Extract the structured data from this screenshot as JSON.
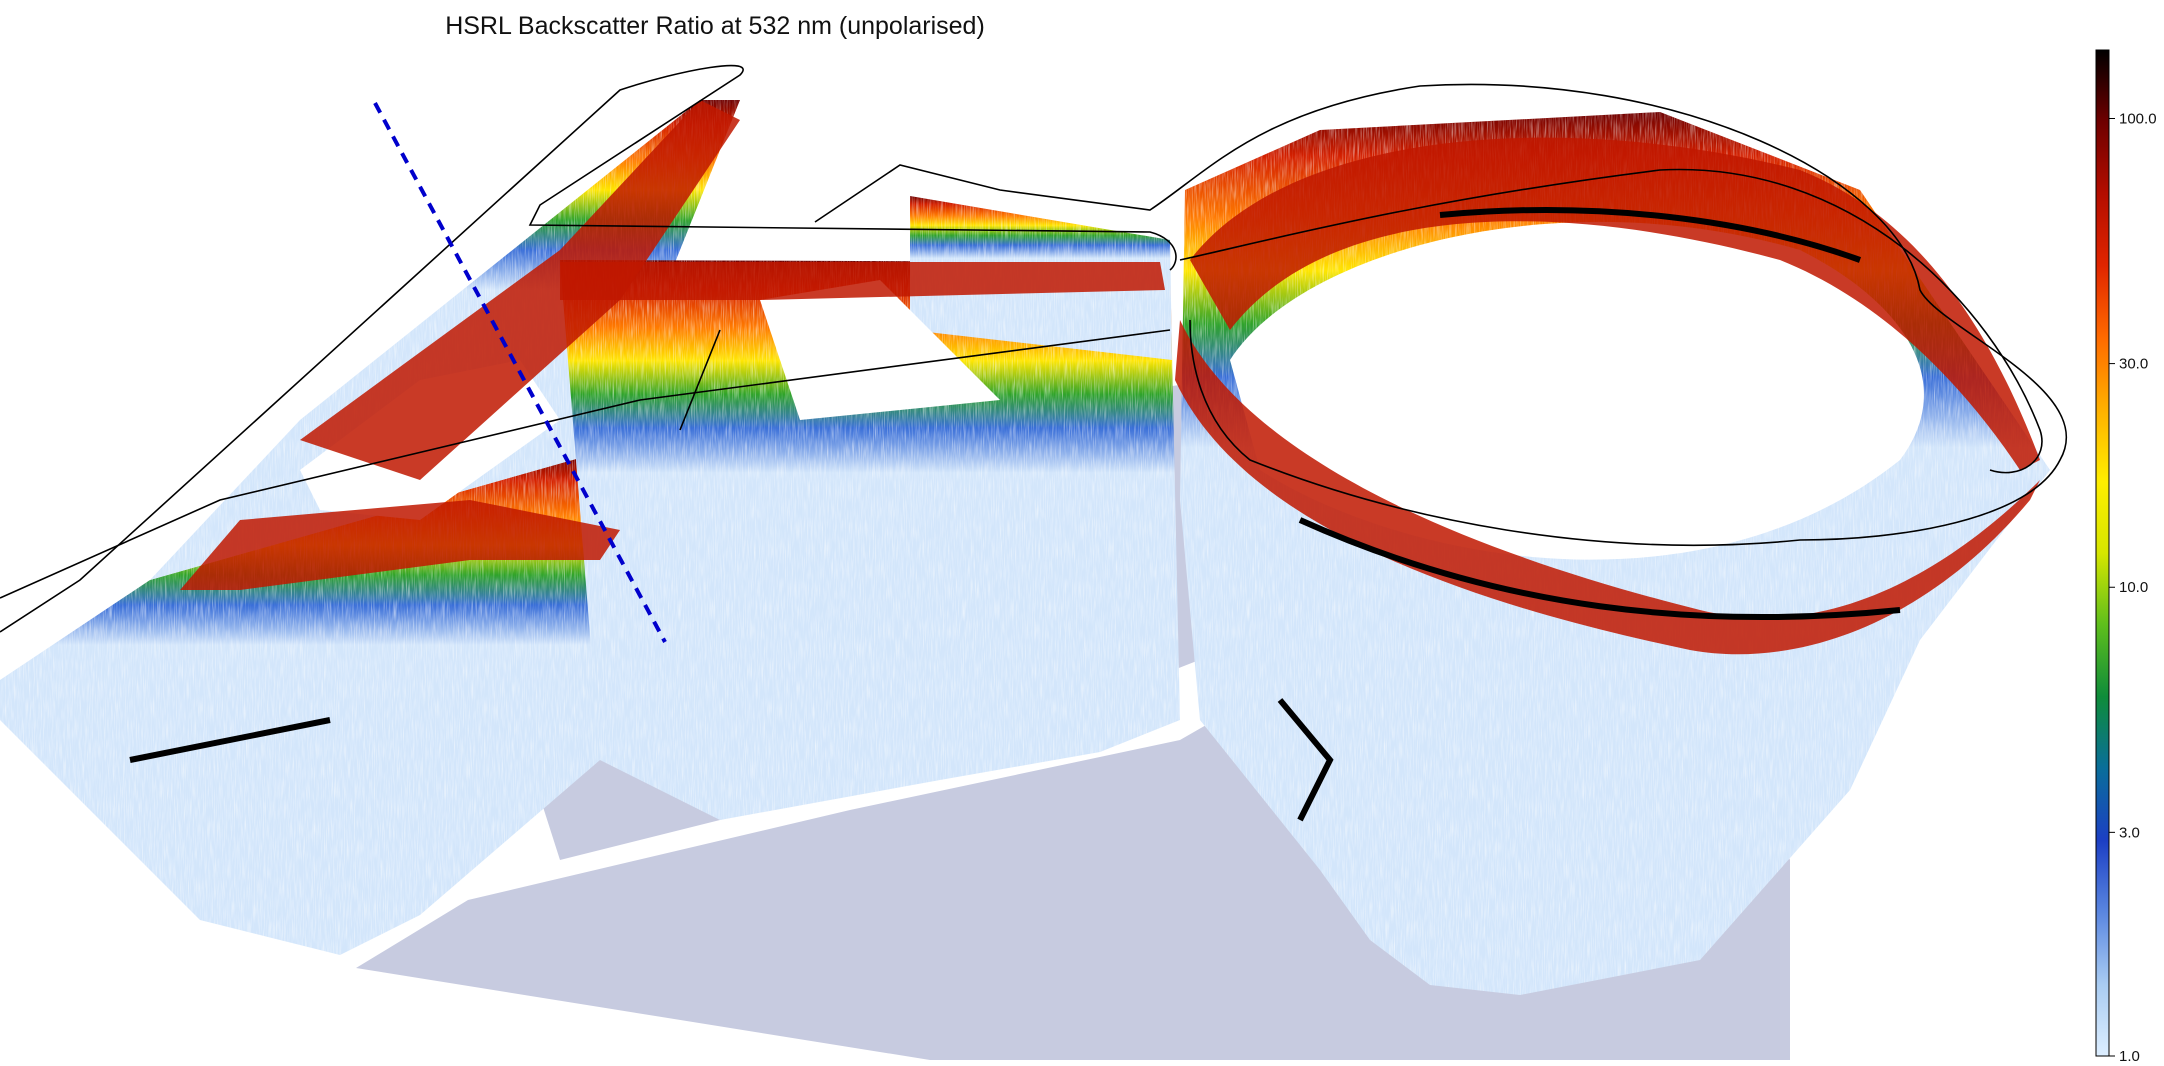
{
  "chart_data": {
    "type": "heatmap",
    "title": "HSRL Backscatter Ratio at 532 nm (unpolarised)",
    "variable": "Backscatter Ratio",
    "wavelength": "532 nm",
    "polarisation": "unpolarised",
    "colorbar": {
      "scale": "log",
      "range": [
        1.0,
        140.0
      ],
      "ticks": [
        1.0,
        3.0,
        10.0,
        30.0,
        100.0
      ],
      "tick_labels": [
        "1.0",
        "3.0",
        "10.0",
        "30.0",
        "100.0"
      ],
      "colormap": [
        "#ddeeff",
        "#a9ccf2",
        "#5a86e0",
        "#1c3fc4",
        "#0a6e9a",
        "#0e8c3a",
        "#5fbf1c",
        "#d6e600",
        "#ffee00",
        "#ffb000",
        "#ff6a00",
        "#e02500",
        "#b40d00",
        "#6e0000",
        "#000000"
      ]
    },
    "panel_colors": {
      "clear_air": "#d3e6fb",
      "ground_shadow": "#c7cbe0",
      "gap": "#ffffff",
      "flight_track": "#000000",
      "marker_line": "#0000cc"
    }
  }
}
